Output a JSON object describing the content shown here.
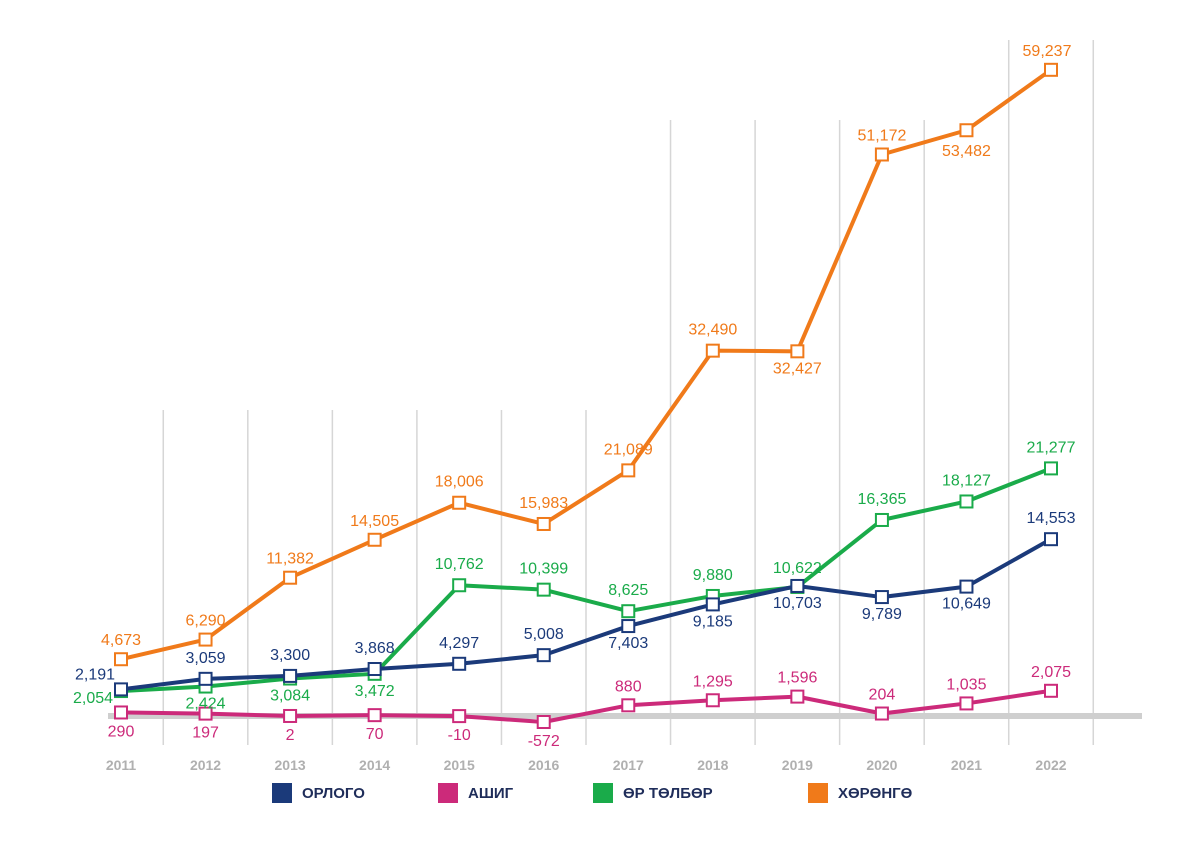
{
  "chart_data": {
    "type": "line",
    "x": [
      "2011",
      "2012",
      "2013",
      "2014",
      "2015",
      "2016",
      "2017",
      "2018",
      "2019",
      "2020",
      "2021",
      "2022"
    ],
    "series": [
      {
        "name": "ОРЛОГО",
        "color": "#1b3a7a",
        "values": [
          2191,
          3059,
          3300,
          3868,
          4297,
          5008,
          7403,
          9185,
          10703,
          9789,
          10649,
          14553
        ],
        "labels": [
          "2,191",
          "3,059",
          "3,300",
          "3,868",
          "4,297",
          "5,008",
          "7,403",
          "9,185",
          "10,703",
          "9,789",
          "10,649",
          "14,553"
        ]
      },
      {
        "name": "АШИГ",
        "color": "#cc2a7a",
        "values": [
          290,
          197,
          2,
          70,
          -10,
          -572,
          880,
          1295,
          1596,
          204,
          1035,
          2075
        ],
        "labels": [
          "290",
          "197",
          "2",
          "70",
          "-10",
          "-572",
          "880",
          "1,295",
          "1,596",
          "204",
          "1,035",
          "2,075"
        ]
      },
      {
        "name": "ӨР ТӨЛБӨР",
        "color": "#1aab4a",
        "values": [
          2054,
          2424,
          3084,
          3472,
          10762,
          10399,
          8625,
          9880,
          10622,
          16365,
          18127,
          21277
        ],
        "labels": [
          "2,054",
          "2,424",
          "3,084",
          "3,472",
          "10,762",
          "10,399",
          "8,625",
          "9,880",
          "10,622",
          "16,365",
          "18,127",
          "21,277"
        ]
      },
      {
        "name": "ХӨРӨНГӨ",
        "color": "#f07a1a",
        "values": [
          4673,
          6290,
          11382,
          14505,
          18006,
          15983,
          21089,
          32490,
          32427,
          51172,
          53482,
          59237
        ],
        "labels": [
          "4,673",
          "6,290",
          "11,382",
          "14,505",
          "18,006",
          "15,983",
          "21,089",
          "32,490",
          "32,427",
          "51,172",
          "53,482",
          "59,237"
        ]
      }
    ],
    "axis_color": "#cfcfcf",
    "grid": "vertical",
    "legend_position": "bottom"
  }
}
